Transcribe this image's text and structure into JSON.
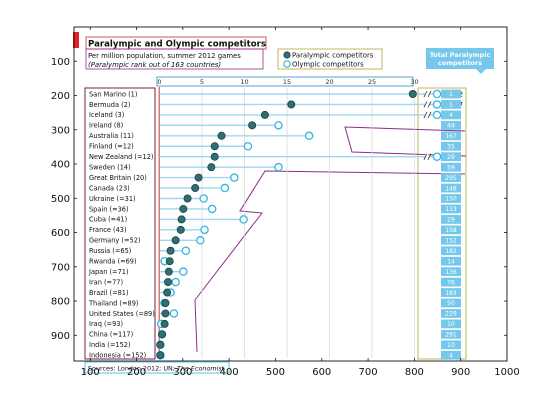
{
  "chart_data": {
    "type": "scatter",
    "title": "Paralympic and Olympic competitors",
    "subtitle_line1": "Per million population, summer 2012 games",
    "subtitle_line2": "(Paralympic rank out of 163 countries)",
    "source_prefix": "Sources: London 2012; UN; ",
    "source_italic": "The Economist",
    "legend": {
      "paralympic": "Paralympic competitors",
      "olympic": "Olympic competitors"
    },
    "totals_header": "Total Paralympic competitors",
    "outer_x_ticks": [
      100,
      200,
      300,
      400,
      500,
      600,
      700,
      800,
      900,
      1000
    ],
    "outer_y_ticks": [
      100,
      200,
      300,
      400,
      500,
      600,
      700,
      800,
      900
    ],
    "outer_xlim": [
      65,
      1000
    ],
    "outer_ylim": [
      0,
      975
    ],
    "inner_x_ticks": [
      0,
      5,
      10,
      15,
      20,
      25,
      30
    ],
    "grid": true,
    "colors": {
      "paralympic": "#2f6e73",
      "olympic": "#33b5e0",
      "totals_box": "#75c8ec",
      "title_border": "#d9534f",
      "accent_red": "#e8202a",
      "annotation_purple": "#8b2d8e",
      "legend_border": "#b8a338"
    },
    "rows": [
      {
        "label": "San Marino (1)",
        "paralympic": 29.8,
        "olympic": 125.2,
        "olympic_label": "125.2",
        "total": "1"
      },
      {
        "label": "Bermuda (2)",
        "paralympic": 15.5,
        "olympic": 122.7,
        "olympic_label": "122.7",
        "total": "1"
      },
      {
        "label": "Iceland (3)",
        "paralympic": 12.4,
        "olympic": 85.3,
        "olympic_label": "85.3",
        "total": "4"
      },
      {
        "label": "Ireland (8)",
        "paralympic": 10.9,
        "olympic": 14.0,
        "total": "49"
      },
      {
        "label": "Australia (11)",
        "paralympic": 7.3,
        "olympic": 17.6,
        "total": "167"
      },
      {
        "label": "Finland (=12)",
        "paralympic": 6.5,
        "olympic": 10.4,
        "total": "35"
      },
      {
        "label": "New Zealand (=12)",
        "paralympic": 6.5,
        "olympic": 43.9,
        "olympic_label": "43.9",
        "total": "29"
      },
      {
        "label": "Sweden (14)",
        "paralympic": 6.1,
        "olympic": 14.0,
        "total": "59"
      },
      {
        "label": "Great Britain (20)",
        "paralympic": 4.6,
        "olympic": 8.8,
        "total": "295"
      },
      {
        "label": "Canada (23)",
        "paralympic": 4.2,
        "olympic": 7.7,
        "total": "148"
      },
      {
        "label": "Ukraine (=31)",
        "paralympic": 3.3,
        "olympic": 5.2,
        "total": "150"
      },
      {
        "label": "Spain (=36)",
        "paralympic": 2.8,
        "olympic": 6.2,
        "total": "133"
      },
      {
        "label": "Cuba (=41)",
        "paralympic": 2.6,
        "olympic": 9.9,
        "total": "29"
      },
      {
        "label": "France (43)",
        "paralympic": 2.5,
        "olympic": 5.3,
        "total": "158"
      },
      {
        "label": "Germany (=52)",
        "paralympic": 1.9,
        "olympic": 4.8,
        "total": "152"
      },
      {
        "label": "Russia (=65)",
        "paralympic": 1.3,
        "olympic": 3.1,
        "total": "182"
      },
      {
        "label": "Rwanda (=69)",
        "paralympic": 1.2,
        "olympic": 0.6,
        "total": "14"
      },
      {
        "label": "Japan (=71)",
        "paralympic": 1.1,
        "olympic": 2.8,
        "total": "136"
      },
      {
        "label": "Iran (=77)",
        "paralympic": 1.0,
        "olympic": 1.9,
        "total": "76"
      },
      {
        "label": "Brazil (=81)",
        "paralympic": 0.9,
        "olympic": 1.3,
        "total": "183"
      },
      {
        "label": "Thailand (=89)",
        "paralympic": 0.7,
        "olympic": 0.6,
        "total": "50"
      },
      {
        "label": "United States (=89)",
        "paralympic": 0.7,
        "olympic": 1.7,
        "total": "229"
      },
      {
        "label": "Iraq (=93)",
        "paralympic": 0.6,
        "olympic": 0.2,
        "total": "10"
      },
      {
        "label": "China (=117)",
        "paralympic": 0.3,
        "olympic": 0.3,
        "total": "291"
      },
      {
        "label": "India (=152)",
        "paralympic": 0.1,
        "olympic": 0.1,
        "total": "10"
      },
      {
        "label": "Indonesia (=152)",
        "paralympic": 0.1,
        "olympic": 0.1,
        "total": "4"
      }
    ]
  }
}
